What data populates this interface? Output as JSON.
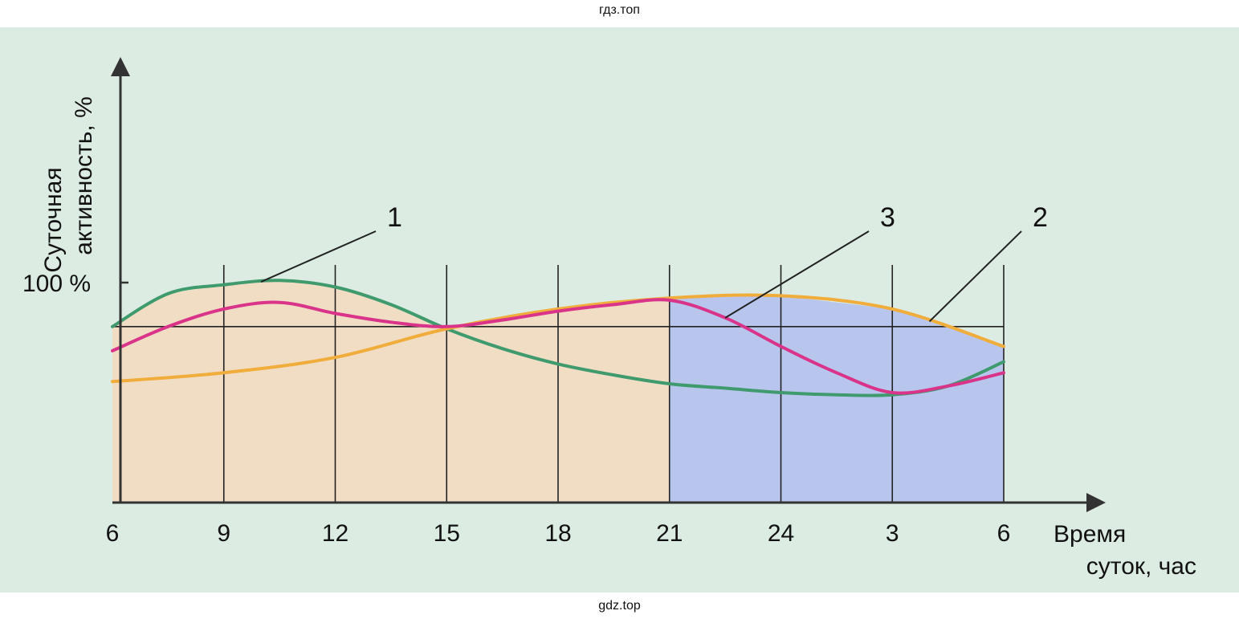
{
  "watermark_top": "гдз.топ",
  "watermark_bottom": "gdz.top",
  "chart_data": {
    "type": "line",
    "ylabel_line1": "Суточная",
    "ylabel_line2": "активность, %",
    "xlabel_line1": "Время",
    "xlabel_line2": "суток, час",
    "y_tick_label": "100 %",
    "x_tick_labels": [
      "6",
      "9",
      "12",
      "15",
      "18",
      "21",
      "24",
      "3",
      "6"
    ],
    "x_hours": [
      6,
      9,
      12,
      15,
      18,
      21,
      24,
      27,
      30
    ],
    "xlim": [
      6,
      30
    ],
    "ylim": [
      0,
      130
    ],
    "day_shading_color": "#f1dcc4",
    "night_shading_color": "#b8c6ee",
    "night_from_hour": 21,
    "series": [
      {
        "name": "1",
        "color": "#3f9a6d",
        "x": [
          6,
          7.5,
          9,
          10.5,
          12,
          13.5,
          15,
          16.5,
          18,
          19.5,
          21,
          22.5,
          24,
          25.5,
          27,
          28.5,
          30
        ],
        "values": [
          80,
          95,
          99,
          101,
          98,
          90,
          79,
          70,
          63,
          58,
          54,
          52,
          50,
          49,
          49,
          53,
          64
        ]
      },
      {
        "name": "2",
        "color": "#f0ad3b",
        "x": [
          6,
          9,
          12,
          15,
          18,
          21,
          24,
          27,
          30
        ],
        "values": [
          55,
          59,
          66,
          79,
          88,
          93,
          94,
          88,
          71
        ]
      },
      {
        "name": "3",
        "color": "#d9338a",
        "x": [
          6,
          7.5,
          9,
          10.5,
          12,
          13.5,
          15,
          16.5,
          18,
          19.5,
          21,
          22.5,
          24,
          25.5,
          27,
          28.5,
          30
        ],
        "values": [
          69,
          80,
          88,
          91,
          86,
          82,
          80,
          83,
          87,
          90,
          92,
          84,
          71,
          59,
          50,
          53,
          59
        ]
      }
    ],
    "curve_labels": [
      {
        "text": "1",
        "series": "1",
        "at_hour": 10
      },
      {
        "text": "3",
        "series": "3",
        "at_hour": 22.5
      },
      {
        "text": "2",
        "series": "2",
        "at_hour": 28
      }
    ],
    "grid": true,
    "legend": "none"
  }
}
